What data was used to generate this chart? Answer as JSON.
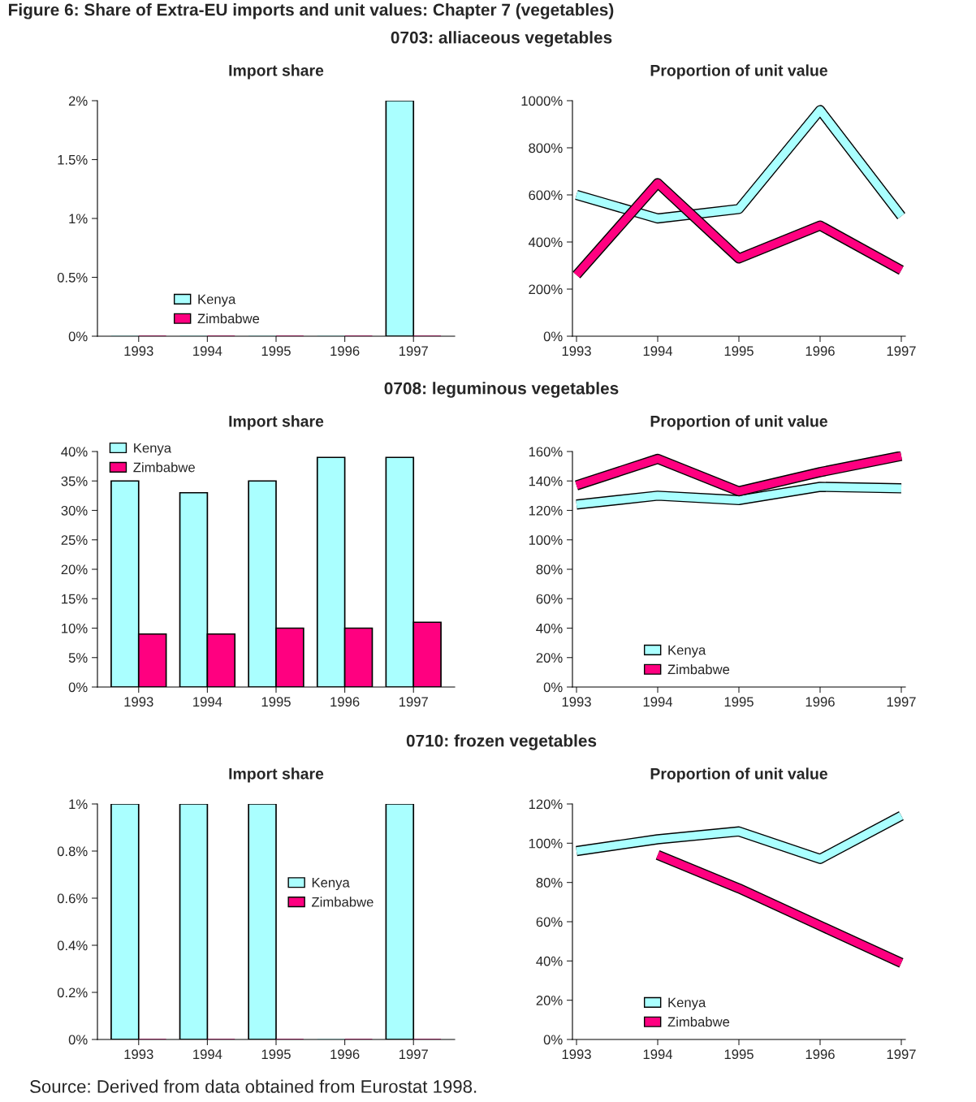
{
  "chart_data": [
    {
      "type": "bar",
      "title": "0703: alliaceous vegetables",
      "subtitle": "Import share",
      "annotations": [
        "Figure 6: Share of Extra-EU imports and unit values: Chapter 7 (vegetables)"
      ],
      "categories": [
        "1993",
        "1994",
        "1995",
        "1996",
        "1997"
      ],
      "series": [
        {
          "name": "Kenya",
          "color": "#aaffff",
          "values": [
            0,
            0,
            0,
            0,
            2.0
          ]
        },
        {
          "name": "Zimbabwe",
          "color": "#ff0080",
          "values": [
            0,
            0,
            0,
            0,
            0
          ]
        }
      ],
      "ylim": [
        0,
        2
      ],
      "yticks": [
        {
          "value": 0,
          "label": "0%"
        },
        {
          "value": 0.5,
          "label": "0.5%"
        },
        {
          "value": 1,
          "label": "1%"
        },
        {
          "value": 1.5,
          "label": "1.5%"
        },
        {
          "value": 2,
          "label": "2%"
        }
      ],
      "legend": "lower left"
    },
    {
      "type": "line",
      "subtitle": "Proportion of unit value",
      "categories": [
        "1993",
        "1994",
        "1995",
        "1996",
        "1997"
      ],
      "series": [
        {
          "color": "#aaffff",
          "values": [
            600,
            500,
            540,
            960,
            510
          ]
        },
        {
          "color": "#ff0080",
          "values": [
            260,
            650,
            330,
            470,
            280
          ]
        }
      ],
      "ylim": [
        0,
        1000
      ],
      "yticks": [
        {
          "value": 0,
          "label": "0%"
        },
        {
          "value": 200,
          "label": "200%"
        },
        {
          "value": 400,
          "label": "400%"
        },
        {
          "value": 600,
          "label": "600%"
        },
        {
          "value": 800,
          "label": "800%"
        },
        {
          "value": 1000,
          "label": "1000%"
        }
      ]
    },
    {
      "type": "bar",
      "title": "0708: leguminous vegetables",
      "subtitle": "Import share",
      "categories": [
        "1993",
        "1994",
        "1995",
        "1996",
        "1997"
      ],
      "series": [
        {
          "name": "Kenya",
          "color": "#aaffff",
          "values": [
            35,
            33,
            35,
            39,
            39
          ]
        },
        {
          "name": "Zimbabwe",
          "color": "#ff0080",
          "values": [
            9,
            9,
            10,
            10,
            11
          ]
        }
      ],
      "ylim": [
        0,
        40
      ],
      "yticks": [
        {
          "value": 0,
          "label": "0%"
        },
        {
          "value": 5,
          "label": "5%"
        },
        {
          "value": 10,
          "label": "10%"
        },
        {
          "value": 15,
          "label": "15%"
        },
        {
          "value": 20,
          "label": "20%"
        },
        {
          "value": 25,
          "label": "25%"
        },
        {
          "value": 30,
          "label": "30%"
        },
        {
          "value": 35,
          "label": "35%"
        },
        {
          "value": 40,
          "label": "40%"
        }
      ],
      "legend": "top left"
    },
    {
      "type": "line",
      "subtitle": "Proportion of unit value",
      "categories": [
        "1993",
        "1994",
        "1995",
        "1996",
        "1997"
      ],
      "series": [
        {
          "name": "Kenya",
          "color": "#aaffff",
          "values": [
            124,
            130,
            127,
            136,
            135
          ]
        },
        {
          "name": "Zimbabwe",
          "color": "#ff0080",
          "values": [
            137,
            155,
            133,
            146,
            157
          ]
        }
      ],
      "ylim": [
        0,
        160
      ],
      "yticks": [
        {
          "value": 0,
          "label": "0%"
        },
        {
          "value": 20,
          "label": "20%"
        },
        {
          "value": 40,
          "label": "40%"
        },
        {
          "value": 60,
          "label": "60%"
        },
        {
          "value": 80,
          "label": "80%"
        },
        {
          "value": 100,
          "label": "100%"
        },
        {
          "value": 120,
          "label": "120%"
        },
        {
          "value": 140,
          "label": "140%"
        },
        {
          "value": 160,
          "label": "160%"
        }
      ],
      "legend": "lower left"
    },
    {
      "type": "bar",
      "title": "0710: frozen vegetables",
      "subtitle": "Import share",
      "categories": [
        "1993",
        "1994",
        "1995",
        "1996",
        "1997"
      ],
      "series": [
        {
          "name": "Kenya",
          "color": "#aaffff",
          "values": [
            1.0,
            1.0,
            1.0,
            0,
            1.0
          ]
        },
        {
          "name": "Zimbabwe",
          "color": "#ff0080",
          "values": [
            0,
            0,
            0,
            0,
            0
          ]
        }
      ],
      "ylim": [
        0,
        1
      ],
      "yticks": [
        {
          "value": 0,
          "label": "0%"
        },
        {
          "value": 0.2,
          "label": "0.2%"
        },
        {
          "value": 0.4,
          "label": "0.4%"
        },
        {
          "value": 0.6,
          "label": "0.6%"
        },
        {
          "value": 0.8,
          "label": "0.8%"
        },
        {
          "value": 1,
          "label": "1%"
        }
      ],
      "legend": "center"
    },
    {
      "type": "line",
      "subtitle": "Proportion of unit value",
      "annotations": [
        "Source: Derived from data obtained from Eurostat 1998."
      ],
      "categories": [
        "1993",
        "1994",
        "1995",
        "1996",
        "1997"
      ],
      "series": [
        {
          "name": "Kenya",
          "color": "#aaffff",
          "values": [
            96,
            102,
            106,
            92,
            114
          ]
        },
        {
          "name": "Zimbabwe",
          "color": "#ff0080",
          "values": [
            null,
            94,
            77,
            58,
            39
          ]
        }
      ],
      "ylim": [
        0,
        120
      ],
      "yticks": [
        {
          "value": 0,
          "label": "0%"
        },
        {
          "value": 20,
          "label": "20%"
        },
        {
          "value": 40,
          "label": "40%"
        },
        {
          "value": 60,
          "label": "60%"
        },
        {
          "value": 80,
          "label": "80%"
        },
        {
          "value": 100,
          "label": "100%"
        },
        {
          "value": 120,
          "label": "120%"
        }
      ],
      "legend": "lower left"
    }
  ]
}
